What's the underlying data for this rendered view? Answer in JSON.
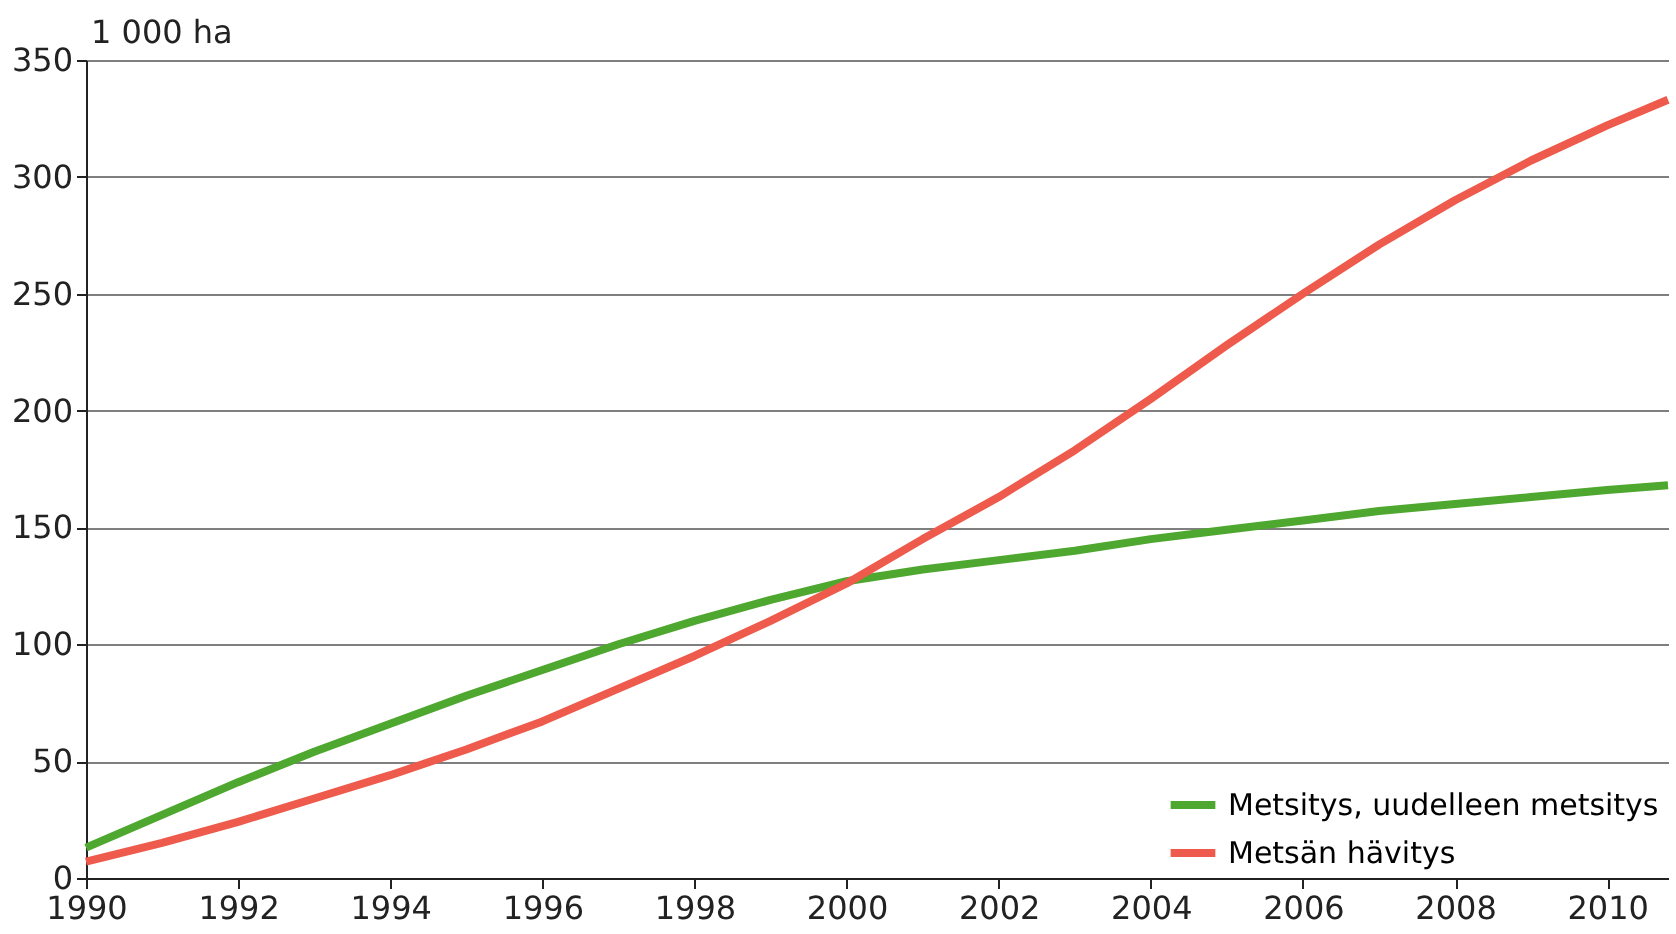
{
  "chart_data": {
    "type": "line",
    "ylabel": "1 000 ha",
    "x": [
      1990,
      1991,
      1992,
      1993,
      1994,
      1995,
      1996,
      1997,
      1998,
      1999,
      2000,
      2001,
      2002,
      2003,
      2004,
      2005,
      2006,
      2007,
      2008,
      2009,
      2010,
      2010.8
    ],
    "series": [
      {
        "name": "Metsitys, uudelleen metsitys",
        "color": "#4ea72e",
        "values": [
          13,
          27,
          41,
          54,
          66,
          78,
          89,
          100,
          110,
          119,
          127,
          132,
          136,
          140,
          145,
          149,
          153,
          157,
          160,
          163,
          166,
          168
        ]
      },
      {
        "name": "Metsän hävitys",
        "color": "#ee5a4b",
        "values": [
          7,
          15,
          24,
          34,
          44,
          55,
          67,
          81,
          95,
          110,
          126,
          145,
          163,
          183,
          205,
          228,
          250,
          271,
          290,
          307,
          322,
          333
        ]
      }
    ],
    "xlim": [
      1990,
      2010.8
    ],
    "xticks": [
      1990,
      1992,
      1994,
      1996,
      1998,
      2000,
      2002,
      2004,
      2006,
      2008,
      2010
    ],
    "ylim": [
      0,
      350
    ],
    "yticks": [
      0,
      50,
      100,
      150,
      200,
      250,
      300,
      350
    ],
    "grid": "y",
    "legend": "bottom right",
    "marker": "none",
    "line_style": "solid"
  }
}
